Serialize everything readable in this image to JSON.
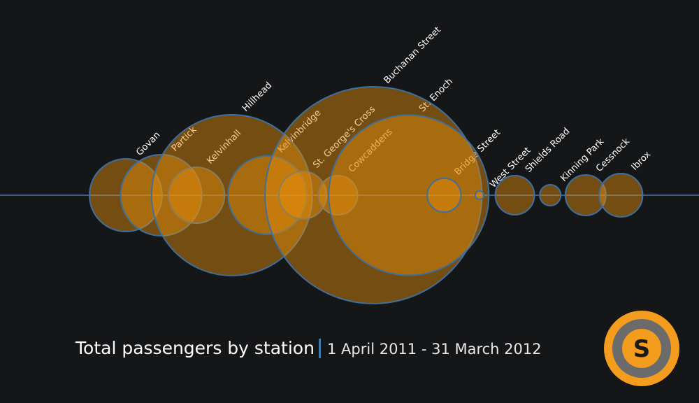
{
  "chart_data": {
    "type": "bubble",
    "title": "Total passengers by station",
    "subtitle": "1 April 2011 - 31 March 2012",
    "categories": [
      "Govan",
      "Partick",
      "Kelvinhall",
      "Hillhead",
      "Kelvinbridge",
      "St. George's Cross",
      "Cowcaddens",
      "Buchanan Street",
      "St. Enoch",
      "Bridge Street",
      "West Street",
      "Shields Road",
      "Kinning Park",
      "Cessnock",
      "Ibrox"
    ],
    "values": [
      270000,
      336000,
      160000,
      1320000,
      314000,
      116000,
      78000,
      2400000,
      1310000,
      58000,
      3600,
      78000,
      22500,
      84000,
      96000
    ],
    "color": "#e8900a",
    "stroke": "#3f6f9f",
    "logo_text": "S"
  }
}
